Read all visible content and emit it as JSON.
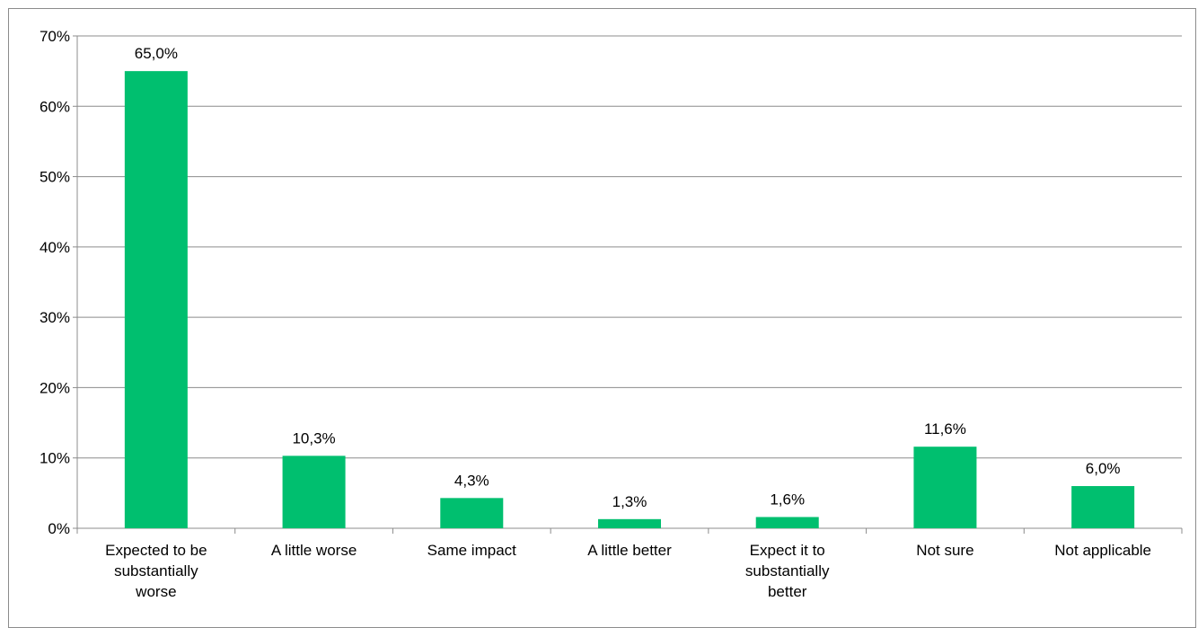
{
  "chart_data": {
    "type": "bar",
    "categories": [
      "Expected to be substantially worse",
      "A little worse",
      "Same impact",
      "A little better",
      "Expect it to substantially better",
      "Not sure",
      "Not applicable"
    ],
    "category_lines": [
      [
        "Expected to be",
        "substantially",
        "worse"
      ],
      [
        "A little worse"
      ],
      [
        "Same impact"
      ],
      [
        "A little better"
      ],
      [
        "Expect it to",
        "substantially",
        "better"
      ],
      [
        "Not sure"
      ],
      [
        "Not applicable"
      ]
    ],
    "values": [
      65.0,
      10.3,
      4.3,
      1.3,
      1.6,
      11.6,
      6.0
    ],
    "data_labels": [
      "65,0%",
      "10,3%",
      "4,3%",
      "1,3%",
      "1,6%",
      "11,6%",
      "6,0%"
    ],
    "yticks": [
      "0%",
      "10%",
      "20%",
      "30%",
      "40%",
      "50%",
      "60%",
      "70%"
    ],
    "ylim": [
      0,
      70
    ],
    "title": "",
    "xlabel": "",
    "ylabel": "",
    "grid": true,
    "legend": "none",
    "colors": {
      "bar": "#00bf6f",
      "grid": "#8c8c8c",
      "axis": "#8c8c8c",
      "text": "#000000"
    }
  }
}
